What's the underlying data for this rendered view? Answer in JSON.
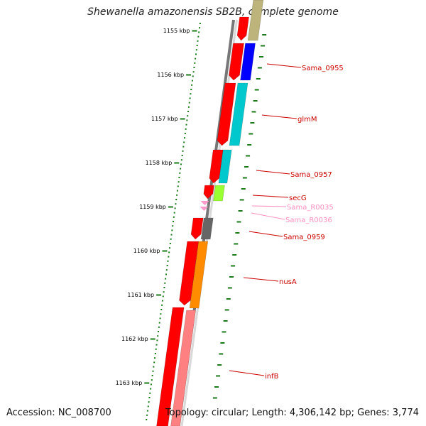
{
  "title": "Shewanella amazonensis SB2B, complete genome",
  "footer": {
    "accession": "Accession: NC_008700",
    "topology": "Topology: circular; Length: 4,306,142 bp; Genes: 3,774"
  },
  "ruler": {
    "unit": "kbp",
    "labels": [
      "1155 kbp",
      "1156 kbp",
      "1157 kbp",
      "1158 kbp",
      "1159 kbp",
      "1160 kbp",
      "1161 kbp",
      "1162 kbp",
      "1163 kbp"
    ],
    "color": "#1a7a1a"
  },
  "colors": {
    "backbone": "#777777",
    "cds_strand": "#ff0000",
    "label": "#cc0000",
    "rna_label": "#ff8fbf"
  },
  "genes": [
    {
      "name": "Sama_0955",
      "color": "#0000ff"
    },
    {
      "name": "glmM",
      "color": "#00c8cc"
    },
    {
      "name": "Sama_0957",
      "color": "#00c8cc"
    },
    {
      "name": "secG",
      "color": "#99ff33"
    },
    {
      "name": "Sama_R0035",
      "color": "#ff99cc",
      "rna": true
    },
    {
      "name": "Sama_R0036",
      "color": "#ff99cc",
      "rna": true
    },
    {
      "name": "Sama_0959",
      "color": "#666666"
    },
    {
      "name": "nusA",
      "color": "#ff8c00"
    },
    {
      "name": "infB",
      "color": "#ff8080"
    }
  ]
}
